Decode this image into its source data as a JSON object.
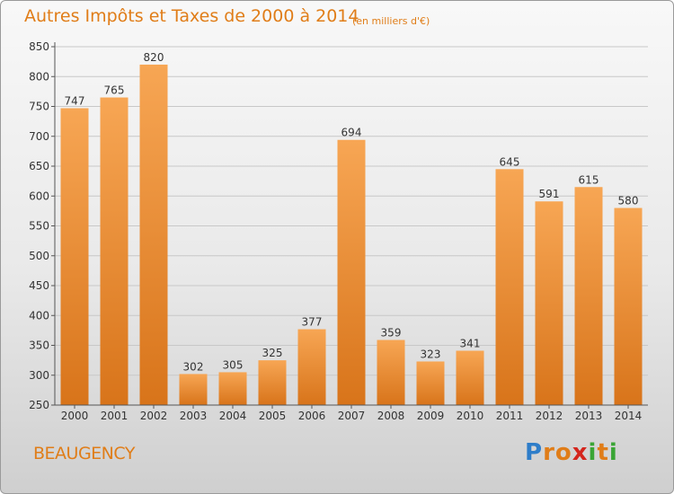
{
  "header": {
    "title": "Autres Impôts et Taxes de 2000 à 2014",
    "subtitle": "(en milliers d'€)"
  },
  "footer": {
    "city": "BEAUGENCY",
    "logo_text": "Proxiti",
    "logo_letters": [
      "P",
      "r",
      "o",
      "x",
      "i",
      "t",
      "i"
    ],
    "logo_colors": [
      "#2e7dc9",
      "#e07d18",
      "#e07d18",
      "#d4261d",
      "#3aa535",
      "#e07d18",
      "#3aa535"
    ]
  },
  "colors": {
    "bar_light": "#f7a654",
    "bar_dark": "#d8741a",
    "axis": "#555555",
    "grid": "#c8c8c8",
    "text": "#333333",
    "accent": "#e07d18"
  },
  "chart_data": {
    "type": "bar",
    "categories": [
      "2000",
      "2001",
      "2002",
      "2003",
      "2004",
      "2005",
      "2006",
      "2007",
      "2008",
      "2009",
      "2010",
      "2011",
      "2012",
      "2013",
      "2014"
    ],
    "values": [
      747,
      765,
      820,
      302,
      305,
      325,
      377,
      694,
      359,
      323,
      341,
      645,
      591,
      615,
      580
    ],
    "data_labels": [
      "747",
      "765",
      "820",
      "302",
      "305",
      "325",
      "377",
      "694",
      "359",
      "323",
      "341",
      "645",
      "591",
      "615",
      "580"
    ],
    "yticks": [
      "250",
      "300",
      "350",
      "400",
      "450",
      "500",
      "550",
      "600",
      "650",
      "700",
      "750",
      "800",
      "850"
    ],
    "ylim": [
      250,
      850
    ],
    "grid": true,
    "legend": "none"
  }
}
